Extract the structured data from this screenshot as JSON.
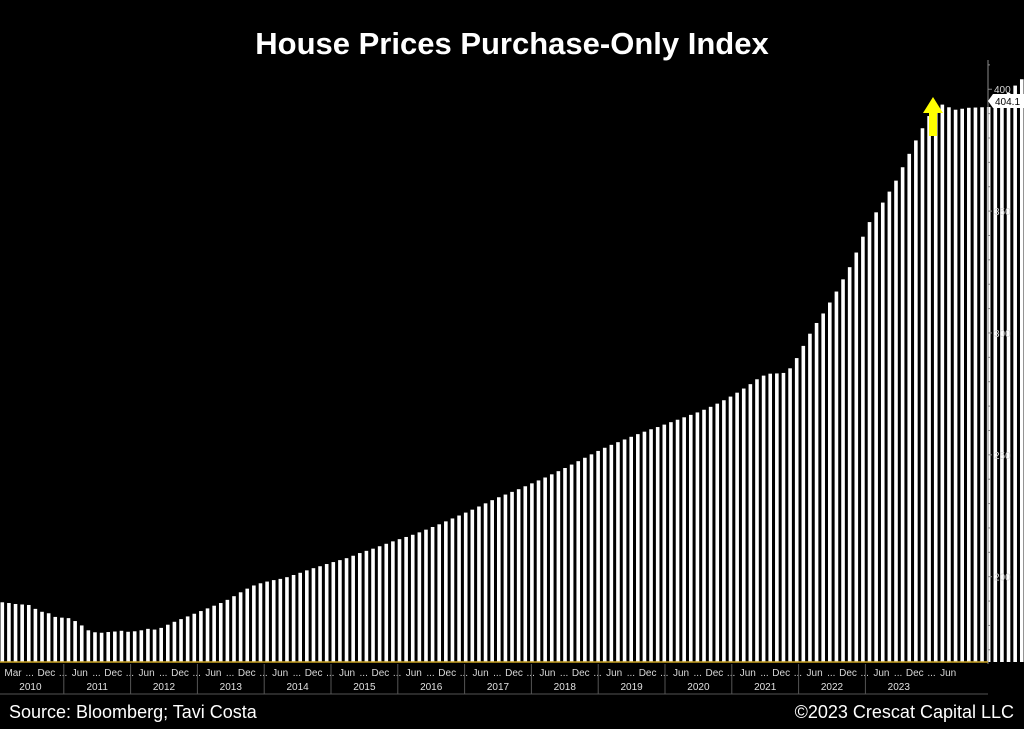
{
  "title": "House Prices Purchase-Only Index",
  "source": "Source: Bloomberg; Tavi Costa",
  "copyright": "©2023 Crescat Capital LLC",
  "colors": {
    "background": "#000000",
    "bars": "#ffffff",
    "arrow": "#ffff00",
    "axis": "#c9a227"
  },
  "annotation": {
    "type": "up-arrow",
    "color": "#ffff00"
  },
  "chart_data": {
    "type": "bar",
    "title": "House Prices Purchase-Only Index",
    "xlabel": "",
    "ylabel": "",
    "ylim": [
      165,
      412
    ],
    "yticks": [
      200,
      250,
      300,
      350,
      400
    ],
    "y_axis_side": "right",
    "last_value_label": "404.1",
    "x_start": "2010-03",
    "x_tick_labels": [
      "Mar",
      "...",
      "Dec",
      "...",
      "Jun",
      "...",
      "Dec",
      "...",
      "Jun",
      "...",
      "Dec",
      "...",
      "Jun",
      "...",
      "Dec",
      "...",
      "Jun",
      "...",
      "Dec",
      "...",
      "Jun",
      "...",
      "Dec",
      "...",
      "Jun",
      "...",
      "Dec",
      "...",
      "Jun",
      "...",
      "Dec",
      "...",
      "Jun",
      "...",
      "Dec",
      "...",
      "Jun",
      "...",
      "Dec",
      "...",
      "Jun",
      "...",
      "Dec",
      "...",
      "Jun",
      "...",
      "Dec",
      "...",
      "Jun",
      "...",
      "Dec",
      "...",
      "Jun",
      "...",
      "Dec",
      "...",
      "Jun"
    ],
    "years": [
      "2010",
      "2011",
      "2012",
      "2013",
      "2014",
      "2015",
      "2016",
      "2017",
      "2018",
      "2019",
      "2020",
      "2021",
      "2022",
      "2023"
    ],
    "values": [
      189.5,
      189.2,
      188.8,
      188.6,
      188.4,
      186.8,
      185.6,
      185.0,
      183.5,
      183.2,
      183.0,
      181.8,
      180.0,
      178.0,
      177.2,
      177.0,
      177.3,
      177.5,
      177.8,
      177.4,
      177.6,
      178.0,
      178.6,
      178.3,
      179.0,
      180.3,
      181.5,
      182.6,
      183.7,
      184.8,
      185.9,
      187.0,
      188.1,
      189.2,
      190.5,
      192.0,
      193.6,
      195.1,
      196.4,
      197.3,
      198.0,
      198.6,
      199.1,
      199.8,
      200.7,
      201.6,
      202.6,
      203.5,
      204.3,
      205.2,
      206.0,
      206.8,
      207.6,
      208.6,
      209.7,
      210.6,
      211.5,
      212.5,
      213.5,
      214.5,
      215.4,
      216.3,
      217.2,
      218.2,
      219.3,
      220.4,
      221.5,
      222.7,
      223.9,
      225.1,
      226.3,
      227.5,
      228.8,
      230.1,
      231.4,
      232.6,
      233.7,
      234.8,
      235.9,
      237.1,
      238.3,
      239.5,
      240.7,
      242.0,
      243.3,
      244.6,
      246.0,
      247.4,
      248.8,
      250.2,
      251.6,
      252.9,
      254.1,
      255.2,
      256.3,
      257.4,
      258.5,
      259.5,
      260.5,
      261.4,
      262.4,
      263.4,
      264.4,
      265.4,
      266.4,
      267.4,
      268.5,
      269.7,
      271.0,
      272.4,
      273.9,
      275.5,
      277.2,
      279.0,
      281.0,
      282.5,
      283.3,
      283.4,
      283.6,
      285.5,
      289.7,
      294.7,
      299.7,
      304.1,
      308.0,
      312.5,
      317.0,
      322.0,
      327.0,
      333.0,
      339.5,
      345.5,
      349.5,
      353.5,
      358.0,
      362.5,
      368.0,
      373.5,
      379.0,
      384.0,
      389.0,
      392.5,
      393.7,
      392.6,
      391.6,
      392.0,
      392.4,
      392.5,
      392.6,
      392.7,
      393.0,
      395.5,
      398.5,
      401.5,
      404.1
    ]
  }
}
